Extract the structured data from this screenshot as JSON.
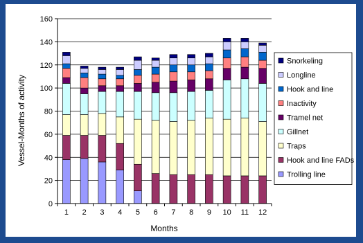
{
  "chart_data": {
    "type": "bar",
    "stacked": true,
    "xlabel": "Months",
    "ylabel": "Vessel-Months of activity",
    "ylim": [
      0,
      160
    ],
    "yticks": [
      0,
      20,
      40,
      60,
      80,
      100,
      120,
      140,
      160
    ],
    "categories": [
      "1",
      "2",
      "3",
      "4",
      "5",
      "6",
      "7",
      "8",
      "9",
      "10",
      "11",
      "12"
    ],
    "legend_position": "right",
    "grid": "horizontal",
    "series": [
      {
        "name": "Trolling line",
        "color": "#9999ff",
        "values": [
          38,
          39,
          36,
          29,
          11,
          0,
          0,
          0,
          0,
          0,
          0,
          0
        ]
      },
      {
        "name": "Hook and line FADs",
        "color": "#993366",
        "values": [
          21,
          20,
          23,
          23,
          23,
          26,
          25,
          25,
          25,
          24,
          24,
          24
        ]
      },
      {
        "name": "Traps",
        "color": "#ffffcc",
        "values": [
          18,
          18,
          19,
          23,
          39,
          46,
          46,
          47,
          49,
          49,
          50,
          47
        ]
      },
      {
        "name": "Gillnet",
        "color": "#ccffff",
        "values": [
          27,
          18,
          19,
          22,
          24,
          24,
          25,
          25,
          24,
          34,
          34,
          33
        ]
      },
      {
        "name": "Tramel net",
        "color": "#660066",
        "values": [
          5,
          5,
          5,
          5,
          7,
          9,
          10,
          10,
          10,
          10,
          10,
          13
        ]
      },
      {
        "name": "Inactivity",
        "color": "#ff8080",
        "values": [
          8,
          9,
          6,
          6,
          7,
          7,
          8,
          7,
          7,
          9,
          9,
          7
        ]
      },
      {
        "name": "Hook and line",
        "color": "#0066cc",
        "values": [
          4,
          4,
          4,
          3,
          5,
          6,
          6,
          6,
          6,
          7,
          7,
          7
        ]
      },
      {
        "name": "Longline",
        "color": "#ccccff",
        "values": [
          7,
          4,
          4,
          5,
          8,
          6,
          6,
          6,
          6,
          7,
          6,
          6
        ]
      },
      {
        "name": "Snorkeling",
        "color": "#000080",
        "values": [
          3,
          2,
          2,
          2,
          3,
          2,
          3,
          3,
          3,
          3,
          3,
          2
        ]
      }
    ]
  }
}
